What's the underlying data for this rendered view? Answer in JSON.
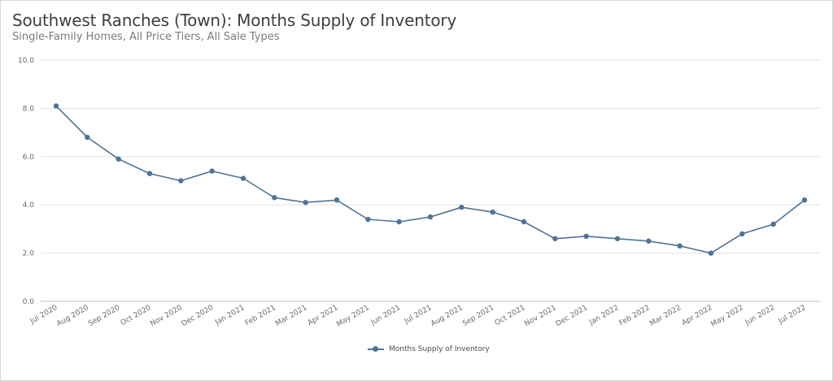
{
  "chart_data": {
    "type": "line",
    "title": "Southwest Ranches (Town): Months Supply of Inventory",
    "subtitle": "Single-Family Homes, All Price Tiers, All Sale Types",
    "xlabel": "",
    "ylabel": "",
    "ylim": [
      0,
      10
    ],
    "yticks": [
      "0.0",
      "2.0",
      "4.0",
      "6.0",
      "8.0",
      "10.0"
    ],
    "categories": [
      "Jul 2020",
      "Aug 2020",
      "Sep 2020",
      "Oct 2020",
      "Nov 2020",
      "Dec 2020",
      "Jan 2021",
      "Feb 2021",
      "Mar 2021",
      "Apr 2021",
      "May 2021",
      "Jun 2021",
      "Jul 2021",
      "Aug 2021",
      "Sep 2021",
      "Oct 2021",
      "Nov 2021",
      "Dec 2021",
      "Jan 2022",
      "Feb 2022",
      "Mar 2022",
      "Apr 2022",
      "May 2022",
      "Jun 2022",
      "Jul 2022"
    ],
    "series": [
      {
        "name": "Months Supply of Inventory",
        "color": "#4f7396",
        "values": [
          8.1,
          6.8,
          5.9,
          5.3,
          5.0,
          5.4,
          5.1,
          4.3,
          4.1,
          4.2,
          3.4,
          3.3,
          3.5,
          3.9,
          3.7,
          3.3,
          2.6,
          2.7,
          2.6,
          2.5,
          2.3,
          2.0,
          2.8,
          3.2,
          4.2
        ]
      }
    ],
    "grid": true,
    "legend_position": "bottom-center"
  }
}
